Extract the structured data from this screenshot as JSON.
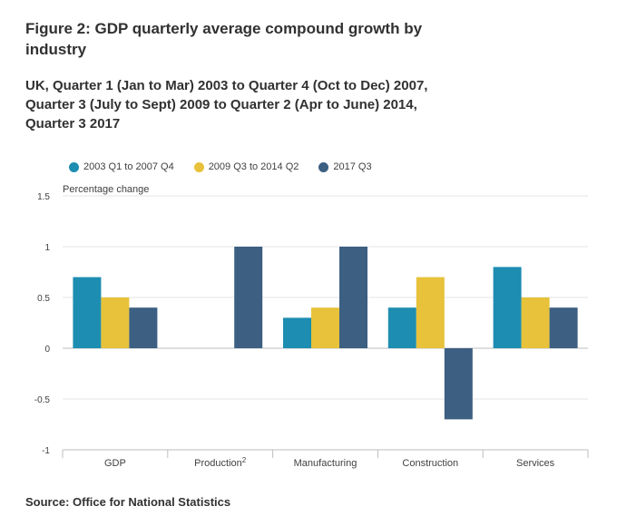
{
  "header": {
    "title": "Figure 2: GDP quarterly average compound growth by industry",
    "subtitle": "UK, Quarter 1 (Jan to Mar) 2003 to Quarter 4 (Oct to Dec) 2007, Quarter 3 (July to Sept) 2009 to Quarter 2 (Apr to June) 2014, Quarter 3 2017"
  },
  "colors": {
    "series1": "#1d8db1",
    "series2": "#e7c23a",
    "series3": "#3c5f82",
    "grid": "#e4e4e4",
    "axis": "#bdbdbd"
  },
  "chart_data": {
    "type": "bar",
    "title": "Figure 2: GDP quarterly average compound growth by industry",
    "ylabel": "Percentage change",
    "xlabel": "",
    "categories": [
      "GDP",
      "Production",
      "Manufacturing",
      "Construction",
      "Services"
    ],
    "category_superscripts": [
      "",
      "2",
      "",
      "",
      ""
    ],
    "series": [
      {
        "name": "2003 Q1 to 2007 Q4",
        "values": [
          0.7,
          0,
          0.3,
          0.4,
          0.8
        ]
      },
      {
        "name": "2009 Q3 to 2014 Q2",
        "values": [
          0.5,
          0,
          0.4,
          0.7,
          0.5
        ]
      },
      {
        "name": "2017 Q3",
        "values": [
          0.4,
          1.0,
          1.0,
          -0.7,
          0.4
        ]
      }
    ],
    "ylim": [
      -1,
      1.5
    ],
    "yticks": [
      1.5,
      1,
      0.5,
      0,
      -0.5,
      -1
    ],
    "ytick_labels": [
      "1.5",
      "1",
      "0.5",
      "0",
      "-0.5",
      "-1"
    ],
    "grid": true,
    "legend_position": "top-left"
  },
  "footer": {
    "source": "Source: Office for National Statistics"
  }
}
